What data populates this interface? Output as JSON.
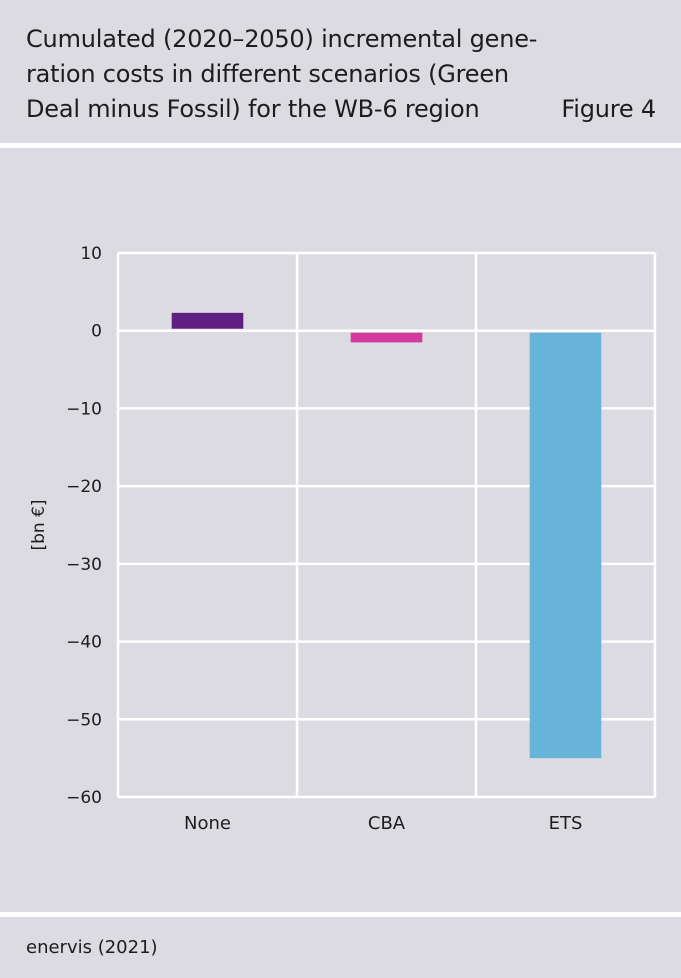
{
  "header": {
    "title_lines": [
      "Cumulated (2020–2050) incremental gene-",
      "ration costs in different scenarios (Green",
      "Deal minus Fossil) for the WB-6 region"
    ],
    "figure_label": "Figure 4"
  },
  "footer": {
    "source": "enervis (2021)"
  },
  "chart_data": {
    "type": "bar",
    "title": "Cumulated (2020–2050) incremental generation costs in different scenarios (Green Deal minus Fossil) for the WB-6 region",
    "categories": [
      "None",
      "CBA",
      "ETS"
    ],
    "values": [
      2.3,
      -1.5,
      -55.0
    ],
    "ylabel": "[bn €]",
    "ylim": [
      -60,
      10
    ],
    "yticks": [
      10,
      0,
      -10,
      -20,
      -30,
      -40,
      -50,
      -60
    ],
    "ytick_labels": [
      "10",
      "0",
      "−10",
      "−20",
      "−30",
      "−40",
      "−50",
      "−60"
    ],
    "colors": [
      "#5f1f82",
      "#d33a9f",
      "#68b3d8"
    ],
    "grid": true,
    "background": "#dcdbe1",
    "grid_color": "#ffffff"
  }
}
